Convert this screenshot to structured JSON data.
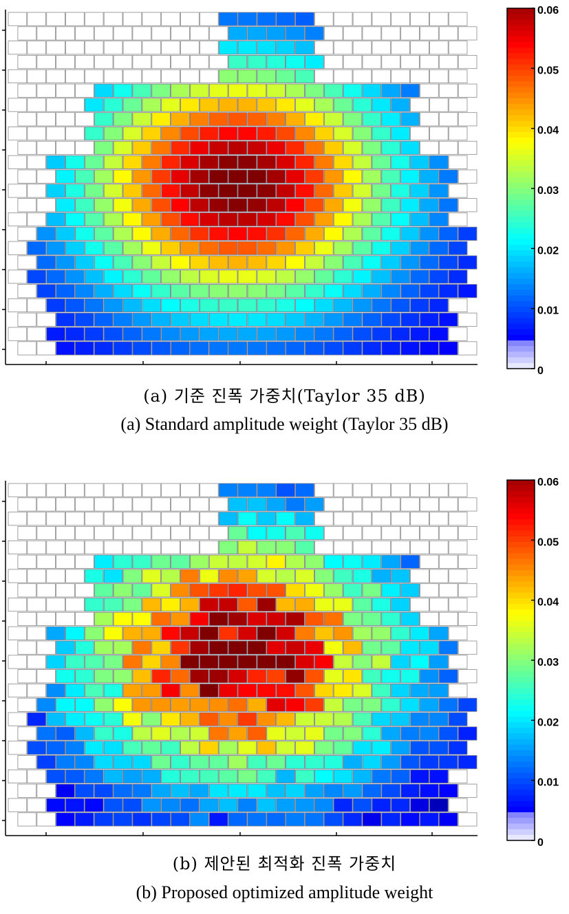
{
  "chart_data": [
    {
      "type": "heatmap",
      "panel": "a",
      "title": "",
      "caption_ko": "(a) 기준 진폭 가중치(Taylor 35 dB)",
      "caption_en": "(a) Standard amplitude weight (Taylor 35 dB)",
      "grid": {
        "columns": 24,
        "rows": 24
      },
      "array_row_extents": [
        [
          11,
          15
        ],
        [
          11,
          15
        ],
        [
          11,
          15
        ],
        [
          11,
          15
        ],
        [
          11,
          15
        ],
        [
          4,
          20
        ],
        [
          4,
          20
        ],
        [
          4,
          20
        ],
        [
          4,
          20
        ],
        [
          4,
          20
        ],
        [
          2,
          22
        ],
        [
          2,
          22
        ],
        [
          2,
          22
        ],
        [
          2,
          22
        ],
        [
          2,
          22
        ],
        [
          1,
          23
        ],
        [
          1,
          23
        ],
        [
          1,
          23
        ],
        [
          1,
          23
        ],
        [
          1,
          23
        ],
        [
          2,
          22
        ],
        [
          2,
          22
        ],
        [
          2,
          22
        ],
        [
          2,
          22
        ]
      ],
      "peak_value": 0.06,
      "distribution": "Taylor 35 dB",
      "colorbar": {
        "min": 0,
        "max": 0.06,
        "ticks": [
          "0.06",
          "0.05",
          "0.04",
          "0.03",
          "0.02",
          "0.01",
          "0"
        ]
      },
      "colormap": "jet"
    },
    {
      "type": "heatmap",
      "panel": "b",
      "title": "",
      "caption_ko": "(b) 제안된 최적화 진폭 가중치",
      "caption_en": "(b) Proposed optimized amplitude weight",
      "grid": {
        "columns": 24,
        "rows": 24
      },
      "peak_value": 0.06,
      "distribution": "optimized (irregular)",
      "colorbar": {
        "min": 0,
        "max": 0.06,
        "ticks": [
          "0.06",
          "0.05",
          "0.04",
          "0.03",
          "0.02",
          "0.01",
          "0"
        ]
      },
      "colormap": "jet"
    }
  ]
}
